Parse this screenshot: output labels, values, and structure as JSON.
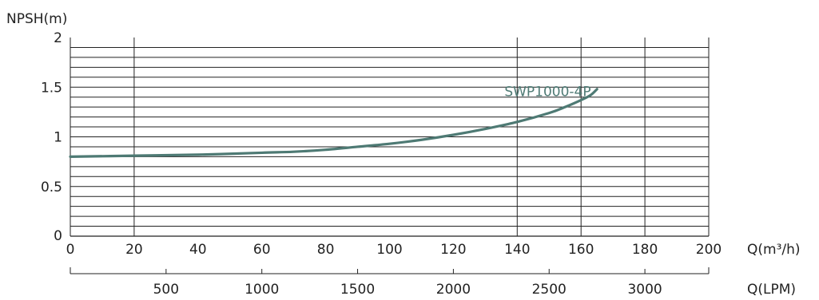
{
  "chart_data": {
    "type": "line",
    "ylabel": "NPSH(m)",
    "xlabel": "Q(m³/h)",
    "x2label": "Q(LPM)",
    "xlim": [
      0,
      200
    ],
    "ylim": [
      0,
      2
    ],
    "x_ticks": [
      "0",
      "20",
      "40",
      "60",
      "80",
      "100",
      "120",
      "140",
      "160",
      "180",
      "200"
    ],
    "y_ticks": [
      "0",
      "0.5",
      "1",
      "1.5",
      "2"
    ],
    "x2_ticks": [
      "500",
      "1000",
      "1500",
      "2000",
      "2500",
      "3000"
    ],
    "x_major_gridlines": [
      0,
      20,
      140,
      160,
      180,
      200
    ],
    "y_gridline_step": 0.1,
    "grid": true,
    "series": [
      {
        "name": "SWP1000-4P",
        "color": "#4e7a74",
        "x": [
          0,
          20,
          40,
          60,
          70,
          80,
          90,
          100,
          110,
          120,
          130,
          140,
          150,
          155,
          160,
          163,
          165
        ],
        "y": [
          0.8,
          0.81,
          0.82,
          0.84,
          0.85,
          0.87,
          0.9,
          0.93,
          0.97,
          1.02,
          1.08,
          1.15,
          1.24,
          1.3,
          1.37,
          1.42,
          1.48
        ]
      }
    ]
  }
}
